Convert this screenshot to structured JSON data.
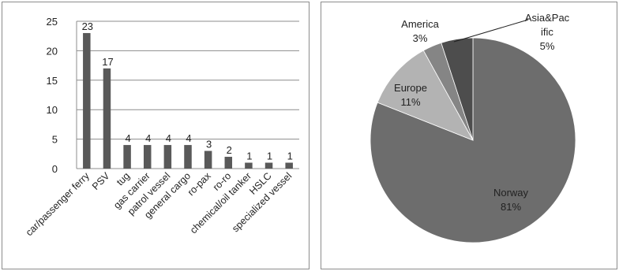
{
  "chart_data": [
    {
      "type": "bar",
      "categories": [
        "car/passenger ferry",
        "PSV",
        "tug",
        "gas carrier",
        "patrol vessel",
        "general cargo",
        "ro-pax",
        "ro-ro",
        "chemical/oil tanker",
        "HSLC",
        "specialized vessel"
      ],
      "values": [
        23,
        17,
        4,
        4,
        4,
        4,
        3,
        2,
        1,
        1,
        1
      ],
      "data_labels": [
        "23",
        "17",
        "4",
        "4",
        "4",
        "4",
        "3",
        "2",
        "1",
        "1",
        "1"
      ],
      "yticks": [
        "0",
        "5",
        "10",
        "15",
        "20",
        "25"
      ],
      "ylim": [
        0,
        25
      ],
      "grid": true,
      "bar_color": "#595959"
    },
    {
      "type": "pie",
      "slices": [
        {
          "label": "Norway",
          "percent_label": "81%",
          "value": 81,
          "color": "#6d6d6d"
        },
        {
          "label": "Europe",
          "percent_label": "11%",
          "value": 11,
          "color": "#b3b3b3"
        },
        {
          "label": "America",
          "percent_label": "3%",
          "value": 3,
          "color": "#858585"
        },
        {
          "label": "Asia&Pac ific",
          "label_lines": [
            "Asia&Pac",
            "ific"
          ],
          "percent_label": "5%",
          "value": 5,
          "color": "#4d4d4d"
        }
      ]
    }
  ]
}
